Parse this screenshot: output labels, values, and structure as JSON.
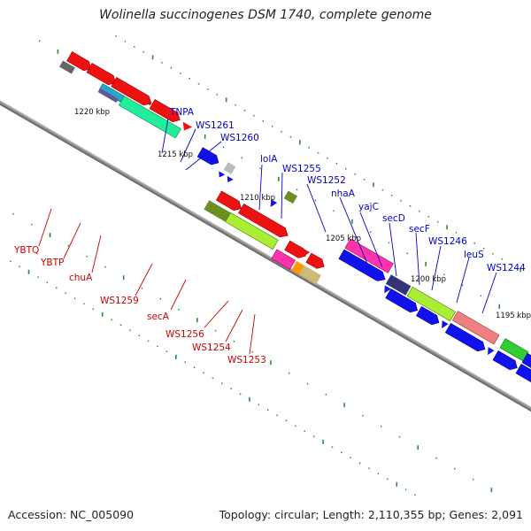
{
  "title": "Wolinella succinogenes DSM 1740, complete genome",
  "footer": {
    "accession": "Accession: NC_005090",
    "stats": "Topology: circular; Length: 2,110,355 bp; Genes: 2,091"
  },
  "colors": {
    "backbone": "#808080",
    "tick": "#2e8b2e",
    "label_plus": "#0000cc",
    "label_minus": "#cc0000"
  },
  "scale_labels": [
    "1220 kbp",
    "1215 kbp",
    "1210 kbp",
    "1205 kbp",
    "1200 kbp",
    "1195 kbp"
  ],
  "genes_top": [
    "TNPA",
    "WS1261",
    "WS1260",
    "lolA",
    "WS1255",
    "WS1252",
    "nhaA",
    "yajC",
    "secD",
    "secF",
    "WS1246",
    "leuS",
    "WS1244"
  ],
  "genes_bottom": [
    "YBTQ",
    "YBTP",
    "chuA",
    "WS1259",
    "secA",
    "WS1256",
    "WS1254",
    "WS1253"
  ]
}
